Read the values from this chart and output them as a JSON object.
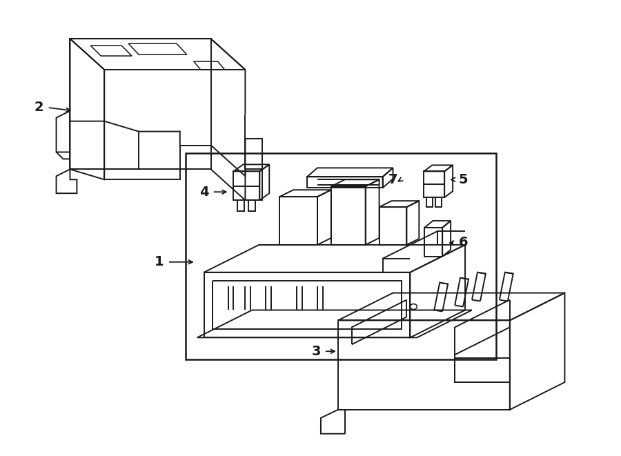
{
  "bg_color": "#ffffff",
  "line_color": "#1a1a1a",
  "line_width": 1.4,
  "fig_width": 9.0,
  "fig_height": 6.61,
  "dpi": 100
}
